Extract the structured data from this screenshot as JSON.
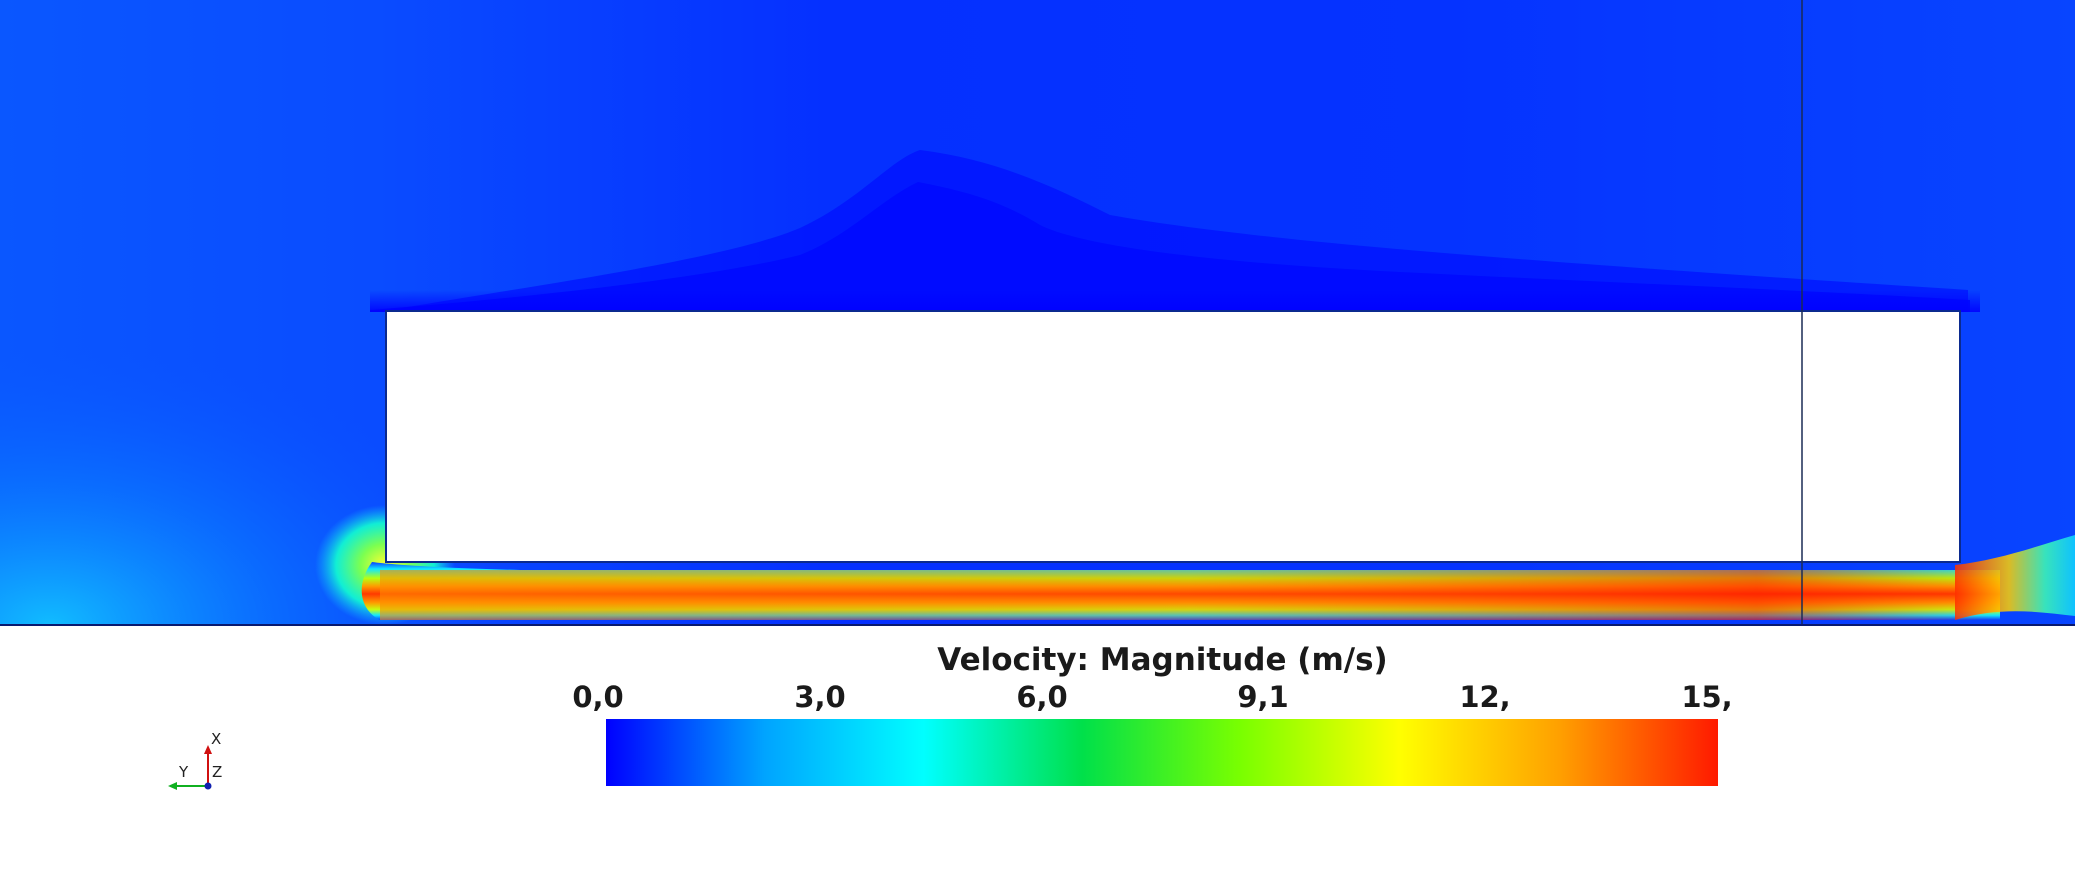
{
  "legend": {
    "title": "Velocity: Magnitude (m/s)",
    "ticks": [
      "0,0",
      "3,0",
      "6,0",
      "9,1",
      "12,",
      "15,"
    ]
  },
  "colormap": [
    "#0000ff",
    "#00a4ff",
    "#00ffff",
    "#00e04a",
    "#7aff00",
    "#ffff00",
    "#ffa000",
    "#ff1a00"
  ],
  "axes": {
    "x_label": "X",
    "y_label": "Y",
    "z_label": "Z"
  }
}
